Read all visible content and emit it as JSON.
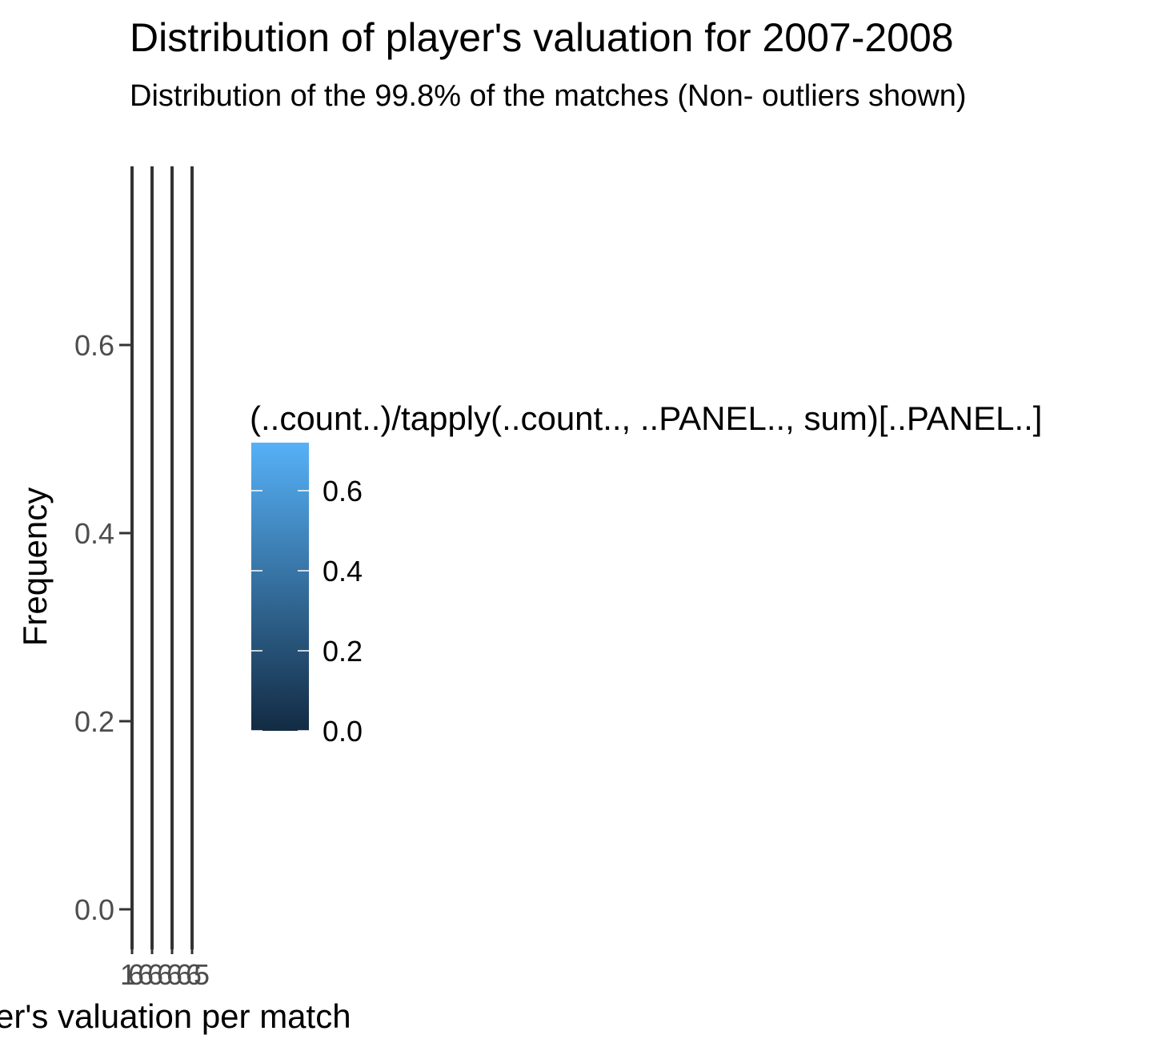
{
  "chart_data": {
    "type": "bar",
    "title": "Distribution of player's valuation for 2007-2008",
    "subtitle": "Distribution of the 99.8% of the matches (Non- outliers shown)",
    "xlabel": "er's valuation per match",
    "ylabel": "Frequency",
    "y_ticks": [
      "0.0",
      "0.2",
      "0.4",
      "0.6"
    ],
    "x_tick_labels": [
      "1",
      "6",
      "6",
      "6",
      "6",
      "6",
      "6",
      "6",
      "5"
    ],
    "ylim": [
      -0.04,
      0.82
    ],
    "bars": [
      {
        "x": 1,
        "value": 0.79
      },
      {
        "x": 2,
        "value": 0.79
      },
      {
        "x": 3,
        "value": 0.79
      },
      {
        "x": 4,
        "value": 0.79
      }
    ],
    "legend": {
      "title": "(..count..)/tapply(..count.., ..PANEL.., sum)[..PANEL..]",
      "labels": [
        "0.6",
        "0.4",
        "0.2",
        "0.0"
      ],
      "values": [
        0.6,
        0.4,
        0.2,
        0.0
      ],
      "range": [
        0.0,
        0.72
      ],
      "color_low": "#132b43",
      "color_high": "#56b1f7",
      "placement": "right"
    },
    "grid": false,
    "bar_color": "#333333",
    "axis_color": "#333333"
  }
}
